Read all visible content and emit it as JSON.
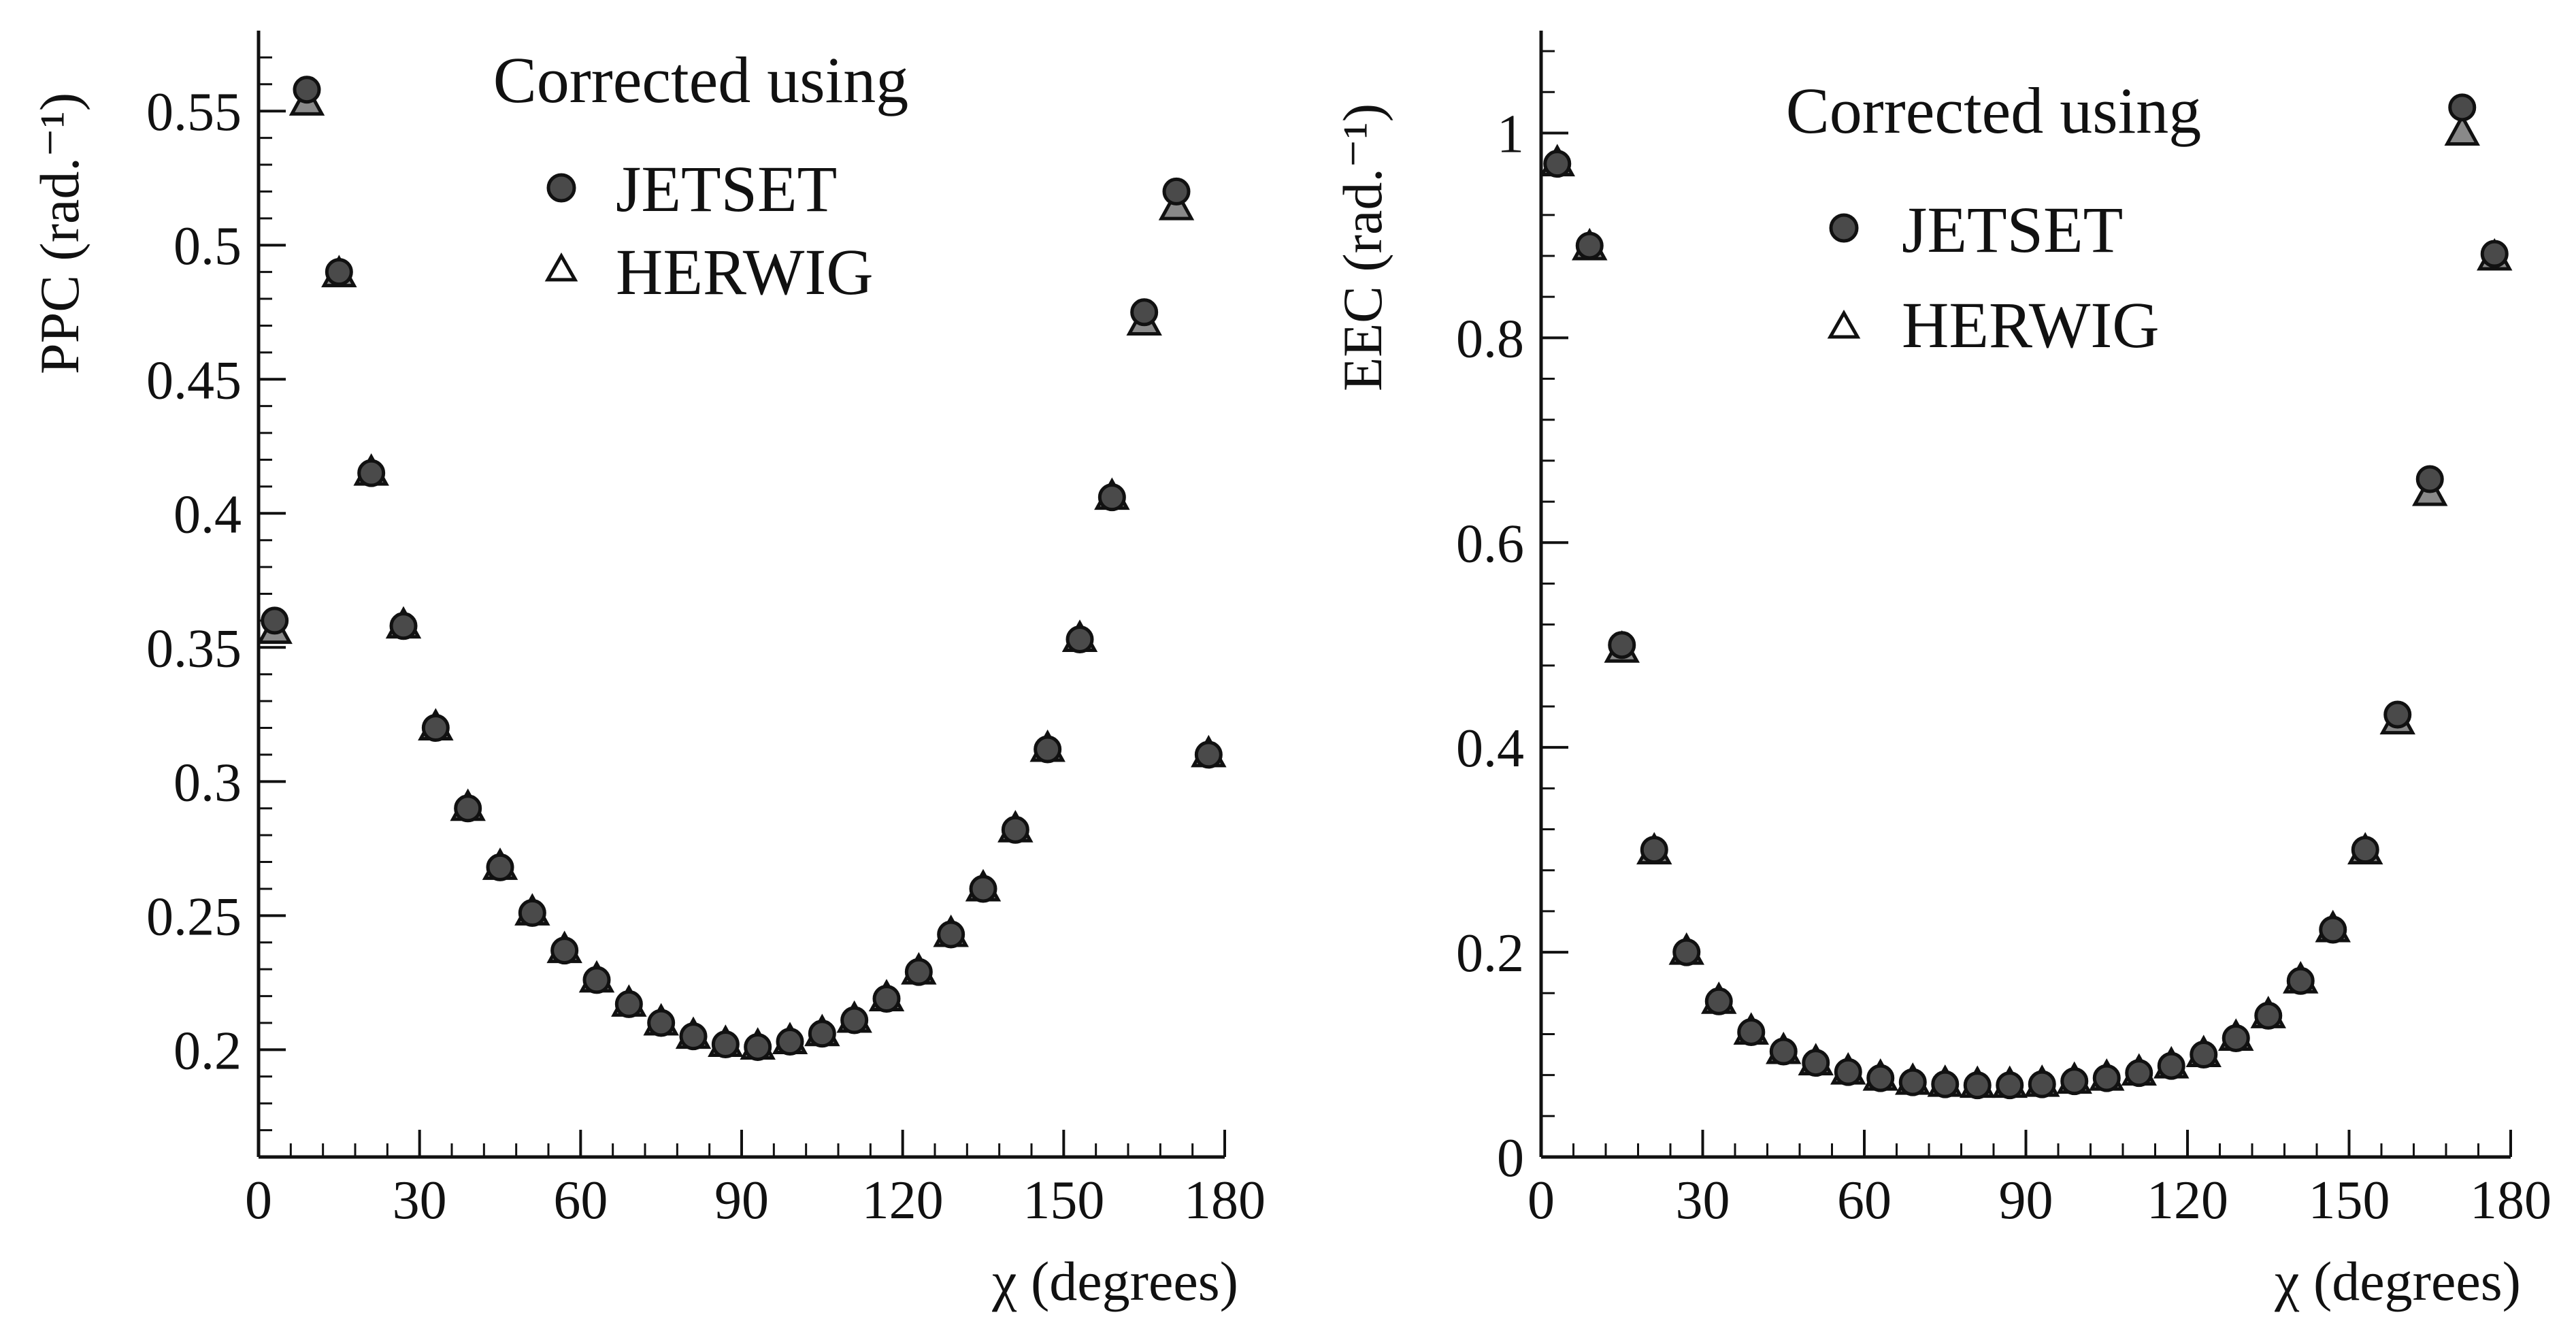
{
  "colors": {
    "ink": "#111111",
    "marker_fill": "#4a4a4a",
    "background": "#ffffff"
  },
  "chart_data": [
    {
      "type": "scatter",
      "ylabel": "PPC (rad.⁻¹)",
      "xlabel": "χ (degrees)",
      "legend": {
        "title": "Corrected using",
        "placement": "top-center"
      },
      "xlim": [
        0,
        180
      ],
      "ylim": [
        0.16,
        0.58
      ],
      "xticks": [
        0,
        30,
        60,
        90,
        120,
        150,
        180
      ],
      "xtick_labels": [
        "0",
        "30",
        "60",
        "90",
        "120",
        "150",
        "180"
      ],
      "yticks": [
        0.2,
        0.25,
        0.3,
        0.35,
        0.4,
        0.45,
        0.5,
        0.55
      ],
      "ytick_labels": [
        "0.2",
        "0.25",
        "0.3",
        "0.35",
        "0.4",
        "0.45",
        "0.5",
        "0.55"
      ],
      "x": [
        3,
        9,
        15,
        21,
        27,
        33,
        39,
        45,
        51,
        57,
        63,
        69,
        75,
        81,
        87,
        93,
        99,
        105,
        111,
        117,
        123,
        129,
        135,
        141,
        147,
        153,
        159,
        165,
        171,
        177
      ],
      "series": [
        {
          "name": "JETSET",
          "marker": "circle",
          "values": [
            0.36,
            0.558,
            0.49,
            0.415,
            0.358,
            0.32,
            0.29,
            0.268,
            0.251,
            0.237,
            0.226,
            0.217,
            0.21,
            0.205,
            0.202,
            0.201,
            0.203,
            0.206,
            0.211,
            0.219,
            0.229,
            0.243,
            0.26,
            0.282,
            0.312,
            0.353,
            0.406,
            0.475,
            0.52,
            0.31
          ]
        },
        {
          "name": "HERWIG",
          "marker": "triangle",
          "values": [
            0.356,
            0.553,
            0.489,
            0.415,
            0.358,
            0.32,
            0.29,
            0.268,
            0.251,
            0.237,
            0.226,
            0.217,
            0.21,
            0.205,
            0.202,
            0.201,
            0.203,
            0.206,
            0.211,
            0.219,
            0.229,
            0.243,
            0.26,
            0.282,
            0.312,
            0.353,
            0.406,
            0.471,
            0.514,
            0.31
          ]
        }
      ]
    },
    {
      "type": "scatter",
      "ylabel": "EEC (rad.⁻¹)",
      "xlabel": "χ (degrees)",
      "legend": {
        "title": "Corrected using",
        "placement": "top-center"
      },
      "xlim": [
        0,
        180
      ],
      "ylim": [
        0,
        1.1
      ],
      "xticks": [
        0,
        30,
        60,
        90,
        120,
        150,
        180
      ],
      "xtick_labels": [
        "0",
        "30",
        "60",
        "90",
        "120",
        "150",
        "180"
      ],
      "yticks": [
        0,
        0.2,
        0.4,
        0.6,
        0.8,
        1.0
      ],
      "ytick_labels": [
        "0",
        "0.2",
        "0.4",
        "0.6",
        "0.8",
        "1"
      ],
      "x": [
        3,
        9,
        15,
        21,
        27,
        33,
        39,
        45,
        51,
        57,
        63,
        69,
        75,
        81,
        87,
        93,
        99,
        105,
        111,
        117,
        123,
        129,
        135,
        141,
        147,
        153,
        159,
        165,
        171,
        177
      ],
      "series": [
        {
          "name": "JETSET",
          "marker": "circle",
          "values": [
            0.97,
            0.89,
            0.5,
            0.3,
            0.2,
            0.152,
            0.122,
            0.103,
            0.092,
            0.083,
            0.077,
            0.073,
            0.071,
            0.07,
            0.07,
            0.071,
            0.074,
            0.077,
            0.082,
            0.089,
            0.1,
            0.116,
            0.138,
            0.172,
            0.222,
            0.3,
            0.432,
            0.662,
            1.025,
            0.882
          ]
        },
        {
          "name": "HERWIG",
          "marker": "triangle",
          "values": [
            0.97,
            0.888,
            0.495,
            0.298,
            0.2,
            0.152,
            0.122,
            0.103,
            0.092,
            0.083,
            0.077,
            0.073,
            0.071,
            0.07,
            0.07,
            0.071,
            0.074,
            0.077,
            0.082,
            0.089,
            0.1,
            0.116,
            0.138,
            0.172,
            0.222,
            0.298,
            0.425,
            0.648,
            1.0,
            0.878
          ]
        }
      ]
    }
  ]
}
